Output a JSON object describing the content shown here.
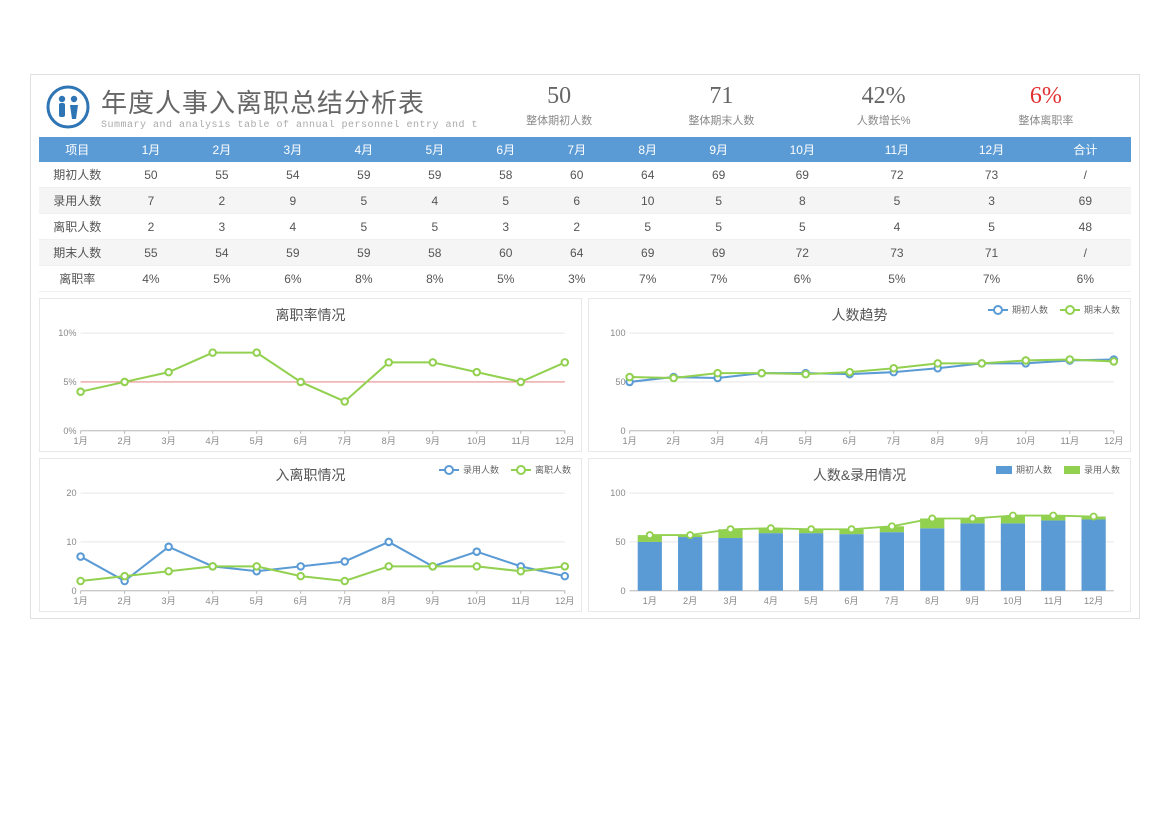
{
  "header": {
    "title": "年度人事入离职总结分析表",
    "subtitle": "Summary and analysis table of annual personnel entry and t",
    "icon_color": "#2e75b6"
  },
  "metrics": [
    {
      "value": "50",
      "label": "整体期初人数",
      "red": false
    },
    {
      "value": "71",
      "label": "整体期末人数",
      "red": false
    },
    {
      "value": "42%",
      "label": "人数增长%",
      "red": false
    },
    {
      "value": "6%",
      "label": "整体离职率",
      "red": true
    }
  ],
  "months": [
    "1月",
    "2月",
    "3月",
    "4月",
    "5月",
    "6月",
    "7月",
    "8月",
    "9月",
    "10月",
    "11月",
    "12月"
  ],
  "table": {
    "header_first": "项目",
    "header_last": "合计",
    "rows": [
      {
        "label": "期初人数",
        "values": [
          50,
          55,
          54,
          59,
          59,
          58,
          60,
          64,
          69,
          69,
          72,
          73
        ],
        "total": "/"
      },
      {
        "label": "录用人数",
        "values": [
          7,
          2,
          9,
          5,
          4,
          5,
          6,
          10,
          5,
          8,
          5,
          3
        ],
        "total": 69
      },
      {
        "label": "离职人数",
        "values": [
          2,
          3,
          4,
          5,
          5,
          3,
          2,
          5,
          5,
          5,
          4,
          5
        ],
        "total": 48
      },
      {
        "label": "期末人数",
        "values": [
          55,
          54,
          59,
          59,
          58,
          60,
          64,
          69,
          69,
          72,
          73,
          71
        ],
        "total": "/"
      },
      {
        "label": "离职率",
        "values": [
          "4%",
          "5%",
          "6%",
          "8%",
          "8%",
          "5%",
          "3%",
          "7%",
          "7%",
          "6%",
          "5%",
          "7%"
        ],
        "total": "6%"
      }
    ],
    "header_bg": "#5b9bd5",
    "header_fg": "#ffffff",
    "alt_row_bg": "#f5f5f5"
  },
  "charts": {
    "turnover_rate": {
      "type": "line",
      "title": "离职率情况",
      "y_suffix": "%",
      "ylim": [
        0,
        10
      ],
      "ytick_step": 5,
      "series": [
        {
          "name": "离职率",
          "color": "#92d050",
          "values": [
            4,
            5,
            6,
            8,
            8,
            5,
            3,
            7,
            7,
            6,
            5,
            7
          ]
        }
      ],
      "ref_line": {
        "value": 5,
        "color": "#e57373"
      },
      "grid_color": "#e8e8e8",
      "axis_color": "#bbbbbb",
      "background_color": "#ffffff",
      "marker_fill": "#ffffff",
      "label_fontsize": 9
    },
    "headcount_trend": {
      "type": "line",
      "title": "人数趋势",
      "ylim": [
        0,
        100
      ],
      "ytick_step": 50,
      "series": [
        {
          "name": "期初人数",
          "color": "#5b9bd5",
          "values": [
            50,
            55,
            54,
            59,
            59,
            58,
            60,
            64,
            69,
            69,
            72,
            73
          ]
        },
        {
          "name": "期末人数",
          "color": "#92d050",
          "values": [
            55,
            54,
            59,
            59,
            58,
            60,
            64,
            69,
            69,
            72,
            73,
            71
          ]
        }
      ],
      "grid_color": "#e8e8e8",
      "axis_color": "#bbbbbb",
      "background_color": "#ffffff",
      "marker_fill": "#ffffff",
      "label_fontsize": 9
    },
    "in_out": {
      "type": "line",
      "title": "入离职情况",
      "ylim": [
        0,
        20
      ],
      "ytick_step": 10,
      "series": [
        {
          "name": "录用人数",
          "color": "#5b9bd5",
          "values": [
            7,
            2,
            9,
            5,
            4,
            5,
            6,
            10,
            5,
            8,
            5,
            3
          ]
        },
        {
          "name": "离职人数",
          "color": "#92d050",
          "values": [
            2,
            3,
            4,
            5,
            5,
            3,
            2,
            5,
            5,
            5,
            4,
            5
          ]
        }
      ],
      "grid_color": "#e8e8e8",
      "axis_color": "#bbbbbb",
      "background_color": "#ffffff",
      "marker_fill": "#ffffff",
      "label_fontsize": 9
    },
    "headcount_hiring": {
      "type": "bar_line",
      "title": "人数&录用情况",
      "ylim": [
        0,
        100
      ],
      "ytick_step": 50,
      "bars": {
        "name": "期初人数",
        "color": "#5b9bd5",
        "values": [
          50,
          55,
          54,
          59,
          59,
          58,
          60,
          64,
          69,
          69,
          72,
          73
        ]
      },
      "top_bars": {
        "name": "录用人数",
        "color": "#92d050",
        "values": [
          7,
          2,
          9,
          5,
          4,
          5,
          6,
          10,
          5,
          8,
          5,
          3
        ]
      },
      "marker_line": {
        "color": "#92d050",
        "values": [
          57,
          57,
          63,
          64,
          63,
          63,
          66,
          74,
          74,
          77,
          77,
          76
        ]
      },
      "bar_width": 0.6,
      "grid_color": "#e8e8e8",
      "axis_color": "#bbbbbb",
      "background_color": "#ffffff",
      "marker_fill": "#ffffff",
      "label_fontsize": 9
    }
  }
}
